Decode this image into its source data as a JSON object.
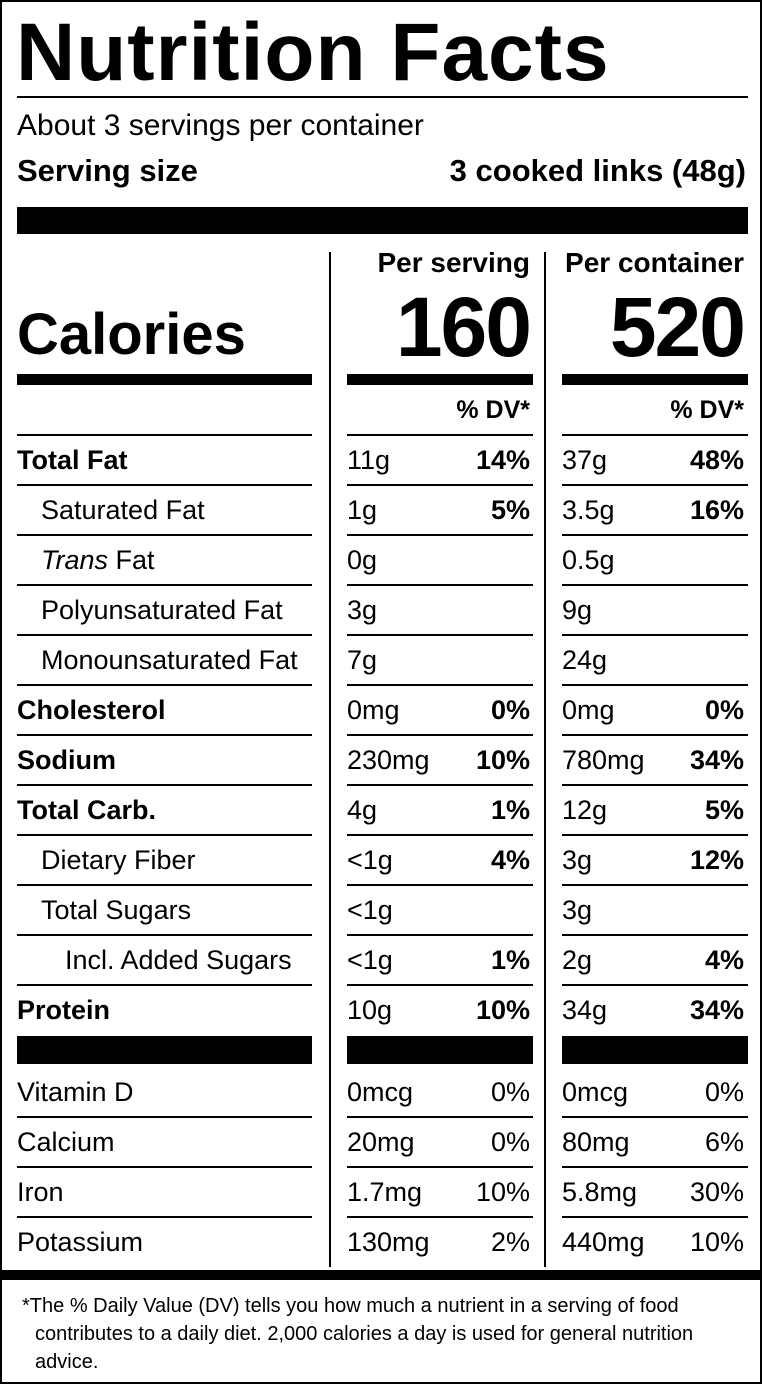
{
  "header": {
    "title": "Nutrition Facts",
    "servings": "About 3 servings per container",
    "serving_size_label": "Serving size",
    "serving_size_value": "3 cooked links (48g)"
  },
  "calories": {
    "label": "Calories",
    "columns": [
      {
        "heading": "Per serving",
        "value": "160"
      },
      {
        "heading": "Per container",
        "value": "520"
      }
    ]
  },
  "dv_heading": [
    "% DV*",
    "% DV*"
  ],
  "nutrients": [
    {
      "name": "Total Fat",
      "bold": true,
      "indent": 0,
      "serving": [
        "11g",
        "14%"
      ],
      "container": [
        "37g",
        "48%"
      ]
    },
    {
      "name": "Saturated Fat",
      "bold": false,
      "indent": 1,
      "serving": [
        "1g",
        "5%"
      ],
      "container": [
        "3.5g",
        "16%"
      ]
    },
    {
      "italic_prefix": "Trans",
      "name": "Fat",
      "bold": false,
      "indent": 1,
      "serving": [
        "0g"
      ],
      "container": [
        "0.5g"
      ]
    },
    {
      "name": "Polyunsaturated Fat",
      "bold": false,
      "indent": 1,
      "serving": [
        "3g"
      ],
      "container": [
        "9g"
      ]
    },
    {
      "name": "Monounsaturated Fat",
      "bold": false,
      "indent": 1,
      "serving": [
        "7g"
      ],
      "container": [
        "24g"
      ]
    },
    {
      "name": "Cholesterol",
      "bold": true,
      "indent": 0,
      "serving": [
        "0mg",
        "0%"
      ],
      "container": [
        "0mg",
        "0%"
      ]
    },
    {
      "name": "Sodium",
      "bold": true,
      "indent": 0,
      "serving": [
        "230mg",
        "10%"
      ],
      "container": [
        "780mg",
        "34%"
      ]
    },
    {
      "name": "Total Carb.",
      "bold": true,
      "indent": 0,
      "serving": [
        "4g",
        "1%"
      ],
      "container": [
        "12g",
        "5%"
      ]
    },
    {
      "name": "Dietary Fiber",
      "bold": false,
      "indent": 1,
      "serving": [
        "<1g",
        "4%"
      ],
      "container": [
        "3g",
        "12%"
      ]
    },
    {
      "name": "Total Sugars",
      "bold": false,
      "indent": 1,
      "serving": [
        "<1g"
      ],
      "container": [
        "3g"
      ]
    },
    {
      "name": "Incl. Added Sugars",
      "bold": false,
      "indent": 2,
      "serving": [
        "<1g",
        "1%"
      ],
      "container": [
        "2g",
        "4%"
      ]
    },
    {
      "name": "Protein",
      "bold": true,
      "indent": 0,
      "serving": [
        "10g",
        "10%"
      ],
      "container": [
        "34g",
        "34%"
      ]
    }
  ],
  "vitamins": [
    {
      "name": "Vitamin D",
      "serving": [
        "0mcg",
        "0%"
      ],
      "container": [
        "0mcg",
        "0%"
      ]
    },
    {
      "name": "Calcium",
      "serving": [
        "20mg",
        "0%"
      ],
      "container": [
        "80mg",
        "6%"
      ]
    },
    {
      "name": "Iron",
      "serving": [
        "1.7mg",
        "10%"
      ],
      "container": [
        "5.8mg",
        "30%"
      ]
    },
    {
      "name": "Potassium",
      "serving": [
        "130mg",
        "2%"
      ],
      "container": [
        "440mg",
        "10%"
      ]
    }
  ],
  "footnote": {
    "marker": "*",
    "text": "The % Daily Value (DV) tells you how much a nutrient in a serving of food contributes to a daily diet. 2,000 calories a day is used for general nutrition advice."
  }
}
